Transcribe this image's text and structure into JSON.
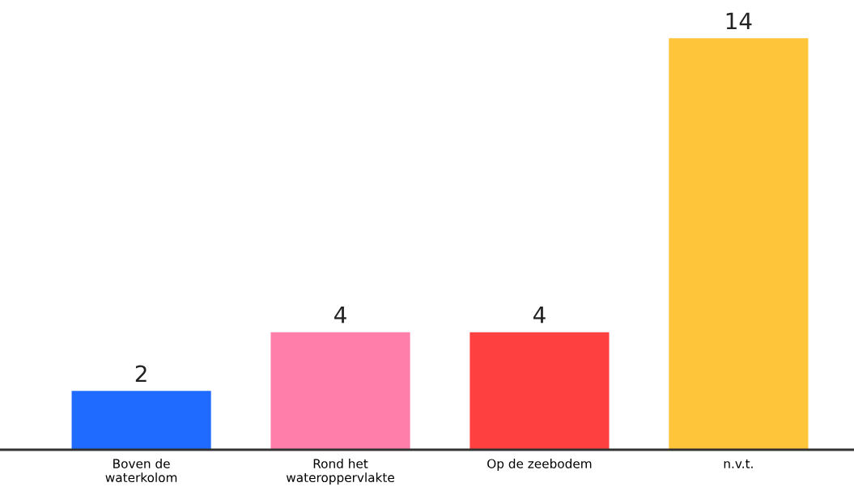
{
  "chart_data": {
    "type": "bar",
    "categories": [
      "Boven de\nwaterkolom",
      "Rond het\nwateroppervlakte",
      "Op de zeebodem",
      "n.v.t."
    ],
    "values": [
      2,
      4,
      4,
      14
    ],
    "colors": [
      "#1f6bff",
      "#ff7eaa",
      "#ff4040",
      "#ffc53a"
    ],
    "data_labels": true,
    "grid": false,
    "legend": false,
    "tick_labels": "x"
  }
}
